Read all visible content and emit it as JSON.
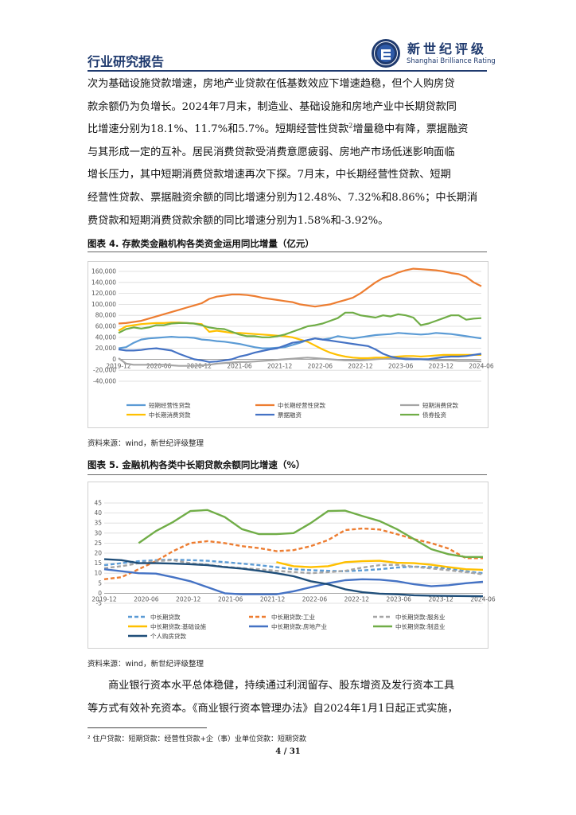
{
  "header": {
    "title": "行业研究报告",
    "logo_cn": "新世纪评级",
    "logo_en": "Shanghai Brilliance Rating"
  },
  "para1": {
    "lines": [
      "次为基础设施贷款增速，房地产业贷款在低基数效应下增速趋稳，但个人购房贷",
      "款余额仍为负增长。2024年7月末，制造业、基础设施和房地产业中长期贷款同",
      "比增速分别为18.1%、11.7%和5.7%。短期经营性贷款",
      "增量稳中有降，票据融资",
      "与其形成一定的互补。居民消费贷款受消费意愿疲弱、房地产市场低迷影响面临",
      "增长压力，其中短期消费贷款增速再次下探。7月末，中长期经营性贷款、短期",
      "经营性贷款、票据融资余额的同比增速分别为12.48%、7.32%和8.86%；中长期消",
      "费贷款和短期消费贷款余额的同比增速分别为1.58%和-3.92%。"
    ],
    "footnote_ref": "2"
  },
  "fig4": {
    "title": "图表 4.  存款类金融机构各类资金运用同比增量（亿元）",
    "source": "资料来源：wind，新世纪评级整理"
  },
  "fig5": {
    "title": "图表 5.  金融机构各类中长期贷款余额同比增速（%）",
    "source": "资料来源：wind，新世纪评级整理"
  },
  "para2": {
    "lines": [
      "商业银行资本水平总体稳健，持续通过利润留存、股东增资及发行资本工具",
      "等方式有效补充资本。《商业银行资本管理办法》自2024年1月1日起正式实施，"
    ]
  },
  "footnote": "² 住户贷款：短期贷款：经营性贷款+企（事）业单位贷款：短期贷款",
  "page_number": "4 / 31",
  "chart_data": [
    {
      "type": "line",
      "x_tick_labels": [
        "2019-12",
        "2020-06",
        "2020-12",
        "2021-06",
        "2021-12",
        "2022-06",
        "2022-12",
        "2023-06",
        "2023-12",
        "2024-06"
      ],
      "ylim": [
        -40000,
        160000
      ],
      "y_tick_labels": [
        "160,000",
        "140,000",
        "120,000",
        "100,000",
        "80,000",
        "60,000",
        "40,000",
        "20,000",
        "0",
        "-20,000",
        "-40,000"
      ],
      "grid": true,
      "legend_position": "bottom",
      "series": [
        {
          "name": "短期经营性贷款",
          "color": "#5b9bd5",
          "dash": false,
          "values": [
            20000,
            22000,
            30000,
            36000,
            38000,
            39000,
            40000,
            41000,
            40000,
            40000,
            39000,
            36000,
            35000,
            33000,
            32000,
            30000,
            28000,
            25000,
            22000,
            20000,
            20000,
            21000,
            22000,
            26000,
            30000,
            35000,
            38000,
            36000,
            38000,
            42000,
            40000,
            38000,
            40000,
            42000,
            44000,
            45000,
            46000,
            48000,
            47000,
            46000,
            45000,
            46000,
            48000,
            47000,
            46000,
            44000,
            42000,
            40000,
            38000
          ]
        },
        {
          "name": "中长期经营性贷款",
          "color": "#ed7d31",
          "dash": false,
          "values": [
            65000,
            66000,
            68000,
            70000,
            74000,
            78000,
            82000,
            86000,
            90000,
            94000,
            98000,
            102000,
            110000,
            114000,
            116000,
            118000,
            118000,
            117000,
            115000,
            112000,
            110000,
            108000,
            106000,
            104000,
            100000,
            98000,
            96000,
            98000,
            100000,
            104000,
            108000,
            112000,
            120000,
            130000,
            140000,
            148000,
            152000,
            158000,
            162000,
            165000,
            164000,
            163000,
            162000,
            160000,
            157000,
            155000,
            150000,
            140000,
            133000
          ]
        },
        {
          "name": "短期消费贷款",
          "color": "#a5a5a5",
          "dash": false,
          "values": [
            2000,
            -8000,
            -10000,
            -10000,
            -10000,
            -10000,
            -10000,
            -11000,
            -12000,
            -12000,
            -12000,
            -11000,
            -10000,
            -8000,
            -7000,
            -6000,
            -5000,
            -5000,
            -4000,
            -3000,
            -2000,
            -1000,
            0,
            1000,
            2000,
            3000,
            2000,
            1000,
            0,
            -1000,
            -2000,
            -2000,
            -2000,
            -1000,
            0,
            1000,
            2000,
            2000,
            2000,
            1000,
            0,
            -1000,
            -2000,
            -2000,
            -2000,
            -3000,
            -3000,
            -3000,
            -4000
          ]
        },
        {
          "name": "中长期消费贷款",
          "color": "#ffc000",
          "dash": false,
          "values": [
            52000,
            60000,
            62000,
            64000,
            65000,
            66000,
            66000,
            67000,
            67000,
            66000,
            65000,
            64000,
            50000,
            52000,
            50000,
            48000,
            48000,
            47000,
            46000,
            45000,
            44000,
            43000,
            42000,
            40000,
            36000,
            32000,
            25000,
            18000,
            12000,
            8000,
            5000,
            3000,
            2000,
            2000,
            3000,
            3000,
            4000,
            5000,
            6000,
            6000,
            5000,
            6000,
            7000,
            8000,
            8000,
            8000,
            8000,
            8000,
            8000
          ]
        },
        {
          "name": "票据融资",
          "color": "#4472c4",
          "dash": false,
          "values": [
            18000,
            16000,
            16000,
            17000,
            19000,
            20000,
            18000,
            16000,
            10000,
            5000,
            0,
            -2000,
            -5000,
            -4000,
            -2000,
            0,
            5000,
            8000,
            12000,
            15000,
            18000,
            20000,
            25000,
            30000,
            32000,
            35000,
            38000,
            36000,
            34000,
            32000,
            30000,
            28000,
            26000,
            24000,
            18000,
            10000,
            5000,
            2000,
            0,
            0,
            0,
            0,
            2000,
            4000,
            5000,
            5000,
            6000,
            8000,
            10000
          ]
        },
        {
          "name": "债券投资",
          "color": "#70ad47",
          "dash": false,
          "values": [
            48000,
            55000,
            58000,
            56000,
            58000,
            62000,
            62000,
            65000,
            66000,
            66000,
            65000,
            62000,
            58000,
            56000,
            55000,
            50000,
            45000,
            42000,
            42000,
            40000,
            40000,
            42000,
            45000,
            50000,
            55000,
            60000,
            62000,
            65000,
            70000,
            75000,
            85000,
            85000,
            80000,
            78000,
            76000,
            80000,
            78000,
            82000,
            80000,
            76000,
            62000,
            65000,
            70000,
            75000,
            80000,
            80000,
            72000,
            74000,
            75000
          ]
        }
      ]
    },
    {
      "type": "line",
      "x_tick_labels": [
        "2019-12",
        "2020-06",
        "2020-12",
        "2021-06",
        "2021-12",
        "2022-06",
        "2022-12",
        "2023-06",
        "2023-12",
        "2024-06"
      ],
      "ylim": [
        -5,
        45
      ],
      "y_tick_labels": [
        "45",
        "40",
        "35",
        "30",
        "25",
        "20",
        "15",
        "10",
        "5",
        "0",
        "-5"
      ],
      "grid": true,
      "legend_position": "bottom",
      "series": [
        {
          "name": "中长期贷款",
          "color": "#5b9bd5",
          "dash": true,
          "values": [
            14,
            15,
            16,
            16.5,
            16.8,
            16.5,
            16.2,
            15.5,
            14.8,
            14,
            13,
            12,
            11.5,
            11.2,
            11,
            11.4,
            12,
            12.8,
            13.3,
            13,
            12.3,
            11,
            10
          ]
        },
        {
          "name": "中长期贷款:工业",
          "color": "#ed7d31",
          "dash": true,
          "values": [
            7,
            8,
            12,
            16,
            21,
            25,
            26,
            25,
            23.5,
            22.5,
            21,
            21.5,
            23.5,
            26.5,
            31.5,
            32.3,
            31.8,
            29.5,
            27,
            25,
            22.3,
            17.5,
            17.5
          ]
        },
        {
          "name": "中长期贷款:服务业",
          "color": "#a5a5a5",
          "dash": true,
          "values": [
            12.5,
            13.5,
            15,
            16,
            16.5,
            15,
            14.2,
            13.2,
            12.5,
            12,
            11.2,
            10.6,
            10,
            10.5,
            11.2,
            12.8,
            14,
            14.2,
            13.2,
            12.4,
            11.5,
            10.5,
            9.5
          ]
        },
        {
          "name": "中长期贷款:基础设施",
          "color": "#ffc000",
          "dash": false,
          "values": [
            null,
            null,
            null,
            null,
            null,
            null,
            null,
            null,
            null,
            null,
            15.5,
            13.5,
            13,
            13.5,
            15.5,
            16,
            16.2,
            15.2,
            15,
            14.2,
            13,
            12,
            11.7
          ]
        },
        {
          "name": "中长期贷款:房地产业",
          "color": "#4472c4",
          "dash": false,
          "values": [
            12,
            11,
            10,
            9.8,
            8,
            6,
            3,
            0,
            -0.5,
            -0.5,
            -0.5,
            1,
            3,
            5,
            6.5,
            7,
            6.8,
            6,
            4.5,
            3.5,
            4,
            5,
            5.7
          ]
        },
        {
          "name": "中长期贷款:制造业",
          "color": "#70ad47",
          "dash": false,
          "values": [
            null,
            null,
            25,
            31,
            35.5,
            41,
            41.5,
            38,
            32,
            29.5,
            29.5,
            30,
            35,
            41,
            41.2,
            38.5,
            36,
            32,
            27,
            22,
            19.5,
            18.1,
            18.1
          ]
        },
        {
          "name": "个人购房贷款",
          "color": "#1f4e79",
          "dash": false,
          "values": [
            17,
            16.5,
            15,
            15,
            14.8,
            14.5,
            14,
            13,
            12.3,
            11.2,
            10,
            8.5,
            6,
            4.5,
            2,
            0.5,
            -0.2,
            -0.5,
            -1,
            -1.2,
            -1.3,
            -1.4,
            -1.5
          ]
        }
      ]
    }
  ]
}
